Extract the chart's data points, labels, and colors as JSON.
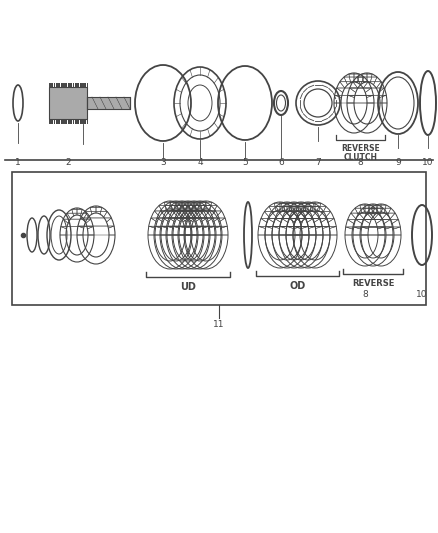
{
  "bg_color": "#ffffff",
  "line_color": "#444444",
  "gray_fill": "#aaaaaa",
  "mid_gray": "#888888",
  "light_gray": "#cccccc",
  "ud_text": "UD",
  "od_text": "OD",
  "reverse_text": "REVERSE",
  "reverse_clutch_line1": "REVERSE",
  "reverse_clutch_line2": "CLUTCH"
}
